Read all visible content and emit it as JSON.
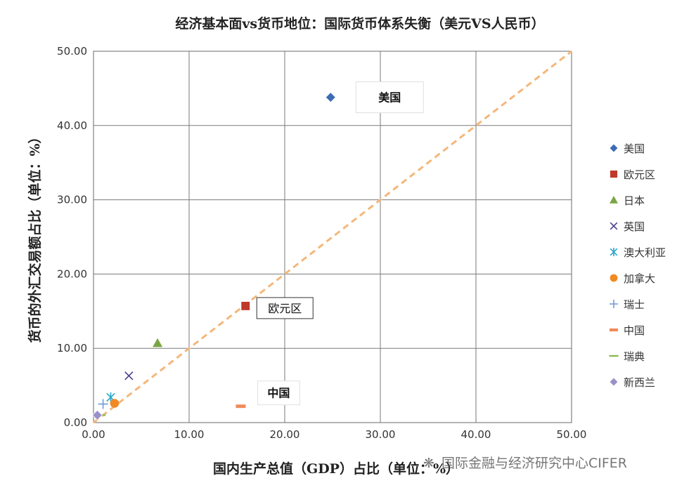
{
  "chart_data": {
    "type": "scatter",
    "title": "经济基本面vs货币地位：国际货币体系失衡（美元VS人民币）",
    "xlabel": "国内生产总值（GDP）占比（单位：%）",
    "ylabel": "货币的外汇交易额占比（单位：%）",
    "xlim": [
      0,
      50
    ],
    "ylim": [
      0,
      50
    ],
    "x_ticks": [
      "0.00",
      "10.00",
      "20.00",
      "30.00",
      "40.00",
      "50.00"
    ],
    "y_ticks": [
      "0.00",
      "10.00",
      "20.00",
      "30.00",
      "40.00",
      "50.00"
    ],
    "grid": true,
    "legend_position": "right",
    "reference_line": {
      "style": "dashed",
      "color": "#F4B77A",
      "from": [
        0,
        0
      ],
      "to": [
        50,
        50
      ]
    },
    "series": [
      {
        "name": "美国",
        "marker": "diamond",
        "color": "#3C6CB4",
        "x": 24.8,
        "y": 43.8
      },
      {
        "name": "欧元区",
        "marker": "square",
        "color": "#C0392B",
        "x": 15.9,
        "y": 15.7
      },
      {
        "name": "日本",
        "marker": "triangle",
        "color": "#7BA545",
        "x": 6.7,
        "y": 10.7
      },
      {
        "name": "英国",
        "marker": "x",
        "color": "#4B3F8F",
        "x": 3.7,
        "y": 6.3
      },
      {
        "name": "澳大利亚",
        "marker": "star",
        "color": "#2AA7C9",
        "x": 1.8,
        "y": 3.4
      },
      {
        "name": "加拿大",
        "marker": "circle",
        "color": "#F08A24",
        "x": 2.2,
        "y": 2.6
      },
      {
        "name": "瑞士",
        "marker": "plus",
        "color": "#6F9BD8",
        "x": 1.0,
        "y": 2.5
      },
      {
        "name": "中国",
        "marker": "dash",
        "color": "#F08A5A",
        "x": 15.4,
        "y": 2.2
      },
      {
        "name": "瑞典",
        "marker": "line",
        "color": "#8DBA55",
        "x": 0.7,
        "y": 1.0
      },
      {
        "name": "新西兰",
        "marker": "diamond",
        "color": "#9B91C9",
        "x": 0.4,
        "y": 1.0
      }
    ],
    "annotations": [
      {
        "text": "美国",
        "bold": true
      },
      {
        "text": "欧元区",
        "bold": false
      },
      {
        "text": "中国",
        "bold": true
      }
    ]
  },
  "watermark": "国际金融与经济研究中心CIFER"
}
